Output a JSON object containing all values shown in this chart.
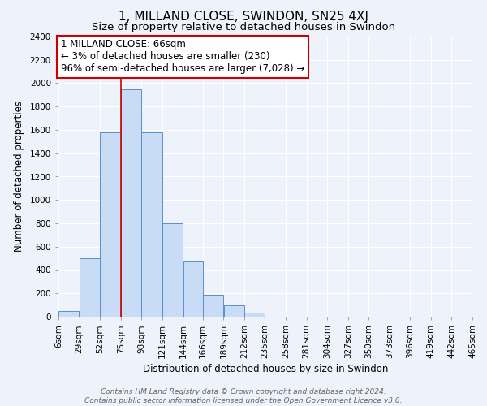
{
  "title": "1, MILLAND CLOSE, SWINDON, SN25 4XJ",
  "subtitle": "Size of property relative to detached houses in Swindon",
  "xlabel": "Distribution of detached houses by size in Swindon",
  "ylabel": "Number of detached properties",
  "bin_labels": [
    "6sqm",
    "29sqm",
    "52sqm",
    "75sqm",
    "98sqm",
    "121sqm",
    "144sqm",
    "166sqm",
    "189sqm",
    "212sqm",
    "235sqm",
    "258sqm",
    "281sqm",
    "304sqm",
    "327sqm",
    "350sqm",
    "373sqm",
    "396sqm",
    "419sqm",
    "442sqm",
    "465sqm"
  ],
  "bar_values": [
    50,
    500,
    1580,
    1950,
    1580,
    800,
    470,
    185,
    95,
    35,
    0,
    0,
    0,
    0,
    0,
    0,
    0,
    0,
    0,
    0
  ],
  "bar_color": "#c9dcf5",
  "bar_edge_color": "#5b8fc9",
  "ylim": [
    0,
    2400
  ],
  "yticks": [
    0,
    200,
    400,
    600,
    800,
    1000,
    1200,
    1400,
    1600,
    1800,
    2000,
    2200,
    2400
  ],
  "vline_color": "#cc0000",
  "annotation_title": "1 MILLAND CLOSE: 66sqm",
  "annotation_line1": "← 3% of detached houses are smaller (230)",
  "annotation_line2": "96% of semi-detached houses are larger (7,028) →",
  "annotation_box_color": "#ffffff",
  "annotation_box_edge": "#cc0000",
  "footer_line1": "Contains HM Land Registry data © Crown copyright and database right 2024.",
  "footer_line2": "Contains public sector information licensed under the Open Government Licence v3.0.",
  "background_color": "#eef2fa",
  "grid_color": "#ffffff",
  "title_fontsize": 11,
  "subtitle_fontsize": 9.5,
  "axis_label_fontsize": 8.5,
  "tick_fontsize": 7.5,
  "annotation_fontsize": 8.5,
  "footer_fontsize": 6.5
}
